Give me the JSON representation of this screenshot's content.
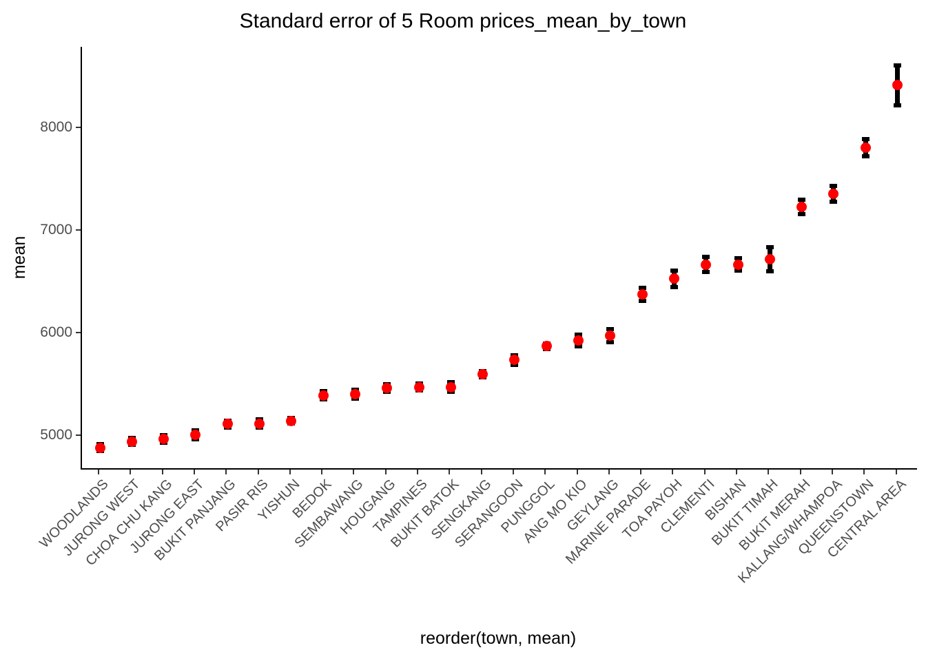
{
  "title": "Standard error of 5 Room prices_mean_by_town",
  "chart_data": {
    "type": "scatter",
    "error_bars": true,
    "title": "Standard error of 5 Room prices_mean_by_town",
    "xlabel": "reorder(town, mean)",
    "ylabel": "mean",
    "grid": false,
    "legend_position": "none",
    "y_ticks": [
      5000,
      6000,
      7000,
      8000
    ],
    "ylim": [
      4680,
      8785
    ],
    "point_color": "#FF0000",
    "errorbar_color": "#000000",
    "axis_text_color": "#4D4D4D",
    "points": [
      {
        "town": "WOODLANDS",
        "mean": 4880,
        "se": 55
      },
      {
        "town": "JURONG WEST",
        "mean": 4940,
        "se": 55
      },
      {
        "town": "CHOA CHU KANG",
        "mean": 4965,
        "se": 60
      },
      {
        "town": "JURONG EAST",
        "mean": 5005,
        "se": 62
      },
      {
        "town": "BUKIT PANJANG",
        "mean": 5110,
        "se": 56
      },
      {
        "town": "PASIR RIS",
        "mean": 5115,
        "se": 60
      },
      {
        "town": "YISHUN",
        "mean": 5140,
        "se": 47
      },
      {
        "town": "BEDOK",
        "mean": 5390,
        "se": 60
      },
      {
        "town": "SEMBAWANG",
        "mean": 5400,
        "se": 63
      },
      {
        "town": "HOUGANG",
        "mean": 5460,
        "se": 56
      },
      {
        "town": "TAMPINES",
        "mean": 5470,
        "se": 53
      },
      {
        "town": "BUKIT BATOK",
        "mean": 5470,
        "se": 66
      },
      {
        "town": "SENGKANG",
        "mean": 5595,
        "se": 50
      },
      {
        "town": "SERANGOON",
        "mean": 5735,
        "se": 66
      },
      {
        "town": "PUNGGOL",
        "mean": 5870,
        "se": 47
      },
      {
        "town": "ANG MO KIO",
        "mean": 5925,
        "se": 76
      },
      {
        "town": "GEYLANG",
        "mean": 5970,
        "se": 83
      },
      {
        "town": "MARINE PARADE",
        "mean": 6375,
        "se": 83
      },
      {
        "town": "TOA PAYOH",
        "mean": 6525,
        "se": 100
      },
      {
        "town": "CLEMENTI",
        "mean": 6665,
        "se": 96
      },
      {
        "town": "BISHAN",
        "mean": 6665,
        "se": 83
      },
      {
        "town": "BUKIT TIMAH",
        "mean": 6715,
        "se": 135
      },
      {
        "town": "BUKIT MERAH",
        "mean": 7225,
        "se": 90
      },
      {
        "town": "KALLANG/WHAMPOA",
        "mean": 7355,
        "se": 96
      },
      {
        "town": "QUEENSTOWN",
        "mean": 7800,
        "se": 104
      },
      {
        "town": "CENTRAL AREA",
        "mean": 8410,
        "se": 213
      }
    ]
  }
}
